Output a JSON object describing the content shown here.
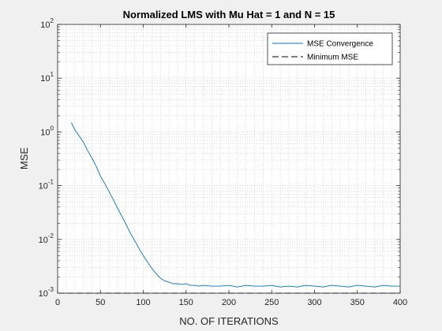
{
  "chart_data": {
    "type": "line",
    "title": "Normalized LMS with Mu Hat = 1 and N = 15",
    "xlabel": "NO. OF ITERATIONS",
    "ylabel": "MSE",
    "xlim": [
      0,
      400
    ],
    "ylim": [
      0.001,
      100
    ],
    "yscale": "log",
    "grid": true,
    "minor_grid": true,
    "legend_position": "top-right",
    "x_ticks": [
      "0",
      "50",
      "100",
      "150",
      "200",
      "250",
      "300",
      "350",
      "400"
    ],
    "y_ticks": [
      {
        "base": "10",
        "exp": "-3"
      },
      {
        "base": "10",
        "exp": "-2"
      },
      {
        "base": "10",
        "exp": "-1"
      },
      {
        "base": "10",
        "exp": "0"
      },
      {
        "base": "10",
        "exp": "1"
      },
      {
        "base": "10",
        "exp": "2"
      }
    ],
    "series": [
      {
        "name": "MSE Convergence",
        "color": "#0072bd",
        "style": "solid",
        "x": [
          16,
          20,
          25,
          30,
          35,
          40,
          45,
          50,
          55,
          60,
          65,
          70,
          75,
          80,
          85,
          90,
          95,
          100,
          105,
          110,
          115,
          120,
          125,
          130,
          135,
          140,
          145,
          150,
          155,
          160,
          165,
          170,
          180,
          190,
          200,
          210,
          220,
          230,
          240,
          250,
          260,
          270,
          280,
          290,
          300,
          310,
          320,
          330,
          340,
          350,
          360,
          370,
          380,
          390,
          400
        ],
        "y": [
          1.5,
          1.1,
          0.85,
          0.65,
          0.45,
          0.33,
          0.23,
          0.15,
          0.11,
          0.078,
          0.055,
          0.038,
          0.027,
          0.019,
          0.013,
          0.0095,
          0.0068,
          0.005,
          0.0038,
          0.0029,
          0.0023,
          0.0019,
          0.0017,
          0.0016,
          0.0015,
          0.0015,
          0.00145,
          0.0015,
          0.0014,
          0.0014,
          0.00135,
          0.0014,
          0.00135,
          0.00135,
          0.0014,
          0.0013,
          0.0014,
          0.00135,
          0.00135,
          0.0014,
          0.0013,
          0.00135,
          0.0013,
          0.0014,
          0.00135,
          0.0013,
          0.0014,
          0.00135,
          0.0013,
          0.0014,
          0.00135,
          0.0013,
          0.0014,
          0.00135,
          0.00135
        ]
      },
      {
        "name": "Minimum MSE",
        "color": "#000000",
        "style": "dashed",
        "x": [
          0,
          400
        ],
        "y": [
          0.001,
          0.001
        ]
      }
    ]
  }
}
